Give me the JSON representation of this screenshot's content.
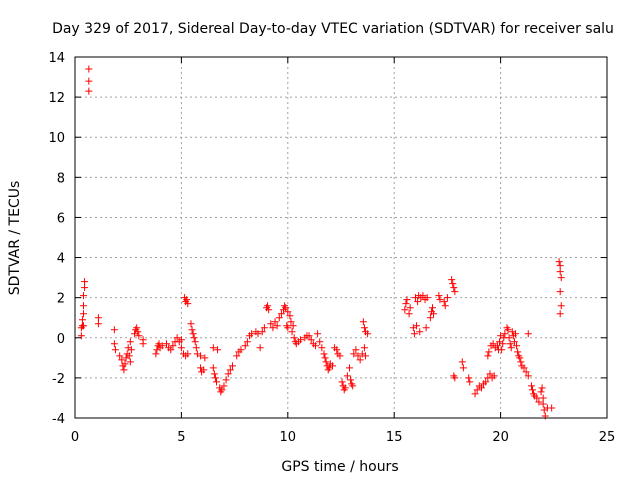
{
  "chart_data": {
    "type": "scatter",
    "title": "Day 329 of 2017, Sidereal Day-to-day VTEC variation (SDTVAR) for receiver salu",
    "xlabel": "GPS time / hours",
    "ylabel": "SDTVAR / TECUs",
    "xlim": [
      0,
      25
    ],
    "ylim": [
      -4,
      14
    ],
    "xticks": [
      0,
      5,
      10,
      15,
      20,
      25
    ],
    "yticks": [
      -4,
      -2,
      0,
      2,
      4,
      6,
      8,
      10,
      12,
      14
    ],
    "grid": true,
    "marker": "+",
    "color": "#ff0000",
    "series": [
      {
        "name": "SDTVAR",
        "points": [
          [
            0.3,
            0.1
          ],
          [
            0.3,
            0.5
          ],
          [
            0.35,
            0.6
          ],
          [
            0.35,
            0.9
          ],
          [
            0.4,
            1.2
          ],
          [
            0.4,
            1.6
          ],
          [
            0.4,
            2.1
          ],
          [
            0.45,
            2.5
          ],
          [
            0.45,
            2.8
          ],
          [
            0.4,
            0.6
          ],
          [
            0.65,
            13.4
          ],
          [
            0.65,
            12.8
          ],
          [
            0.65,
            12.3
          ],
          [
            1.1,
            1.0
          ],
          [
            1.1,
            0.7
          ],
          [
            1.85,
            0.4
          ],
          [
            1.85,
            -0.3
          ],
          [
            1.9,
            -0.6
          ],
          [
            2.1,
            -0.9
          ],
          [
            2.2,
            -1.1
          ],
          [
            2.25,
            -1.4
          ],
          [
            2.3,
            -1.6
          ],
          [
            2.35,
            -1.3
          ],
          [
            2.4,
            -1.0
          ],
          [
            2.45,
            -0.8
          ],
          [
            2.5,
            -0.5
          ],
          [
            2.55,
            -0.9
          ],
          [
            2.6,
            -1.2
          ],
          [
            2.6,
            -0.2
          ],
          [
            2.65,
            -0.6
          ],
          [
            2.8,
            0.2
          ],
          [
            2.85,
            0.4
          ],
          [
            2.9,
            0.5
          ],
          [
            2.95,
            0.3
          ],
          [
            3.0,
            0.1
          ],
          [
            3.2,
            -0.1
          ],
          [
            3.2,
            -0.3
          ],
          [
            3.8,
            -0.8
          ],
          [
            3.85,
            -0.6
          ],
          [
            3.9,
            -0.4
          ],
          [
            3.95,
            -0.3
          ],
          [
            4.0,
            -0.5
          ],
          [
            4.1,
            -0.4
          ],
          [
            4.3,
            -0.3
          ],
          [
            4.4,
            -0.5
          ],
          [
            4.5,
            -0.6
          ],
          [
            4.6,
            -0.4
          ],
          [
            4.7,
            -0.2
          ],
          [
            4.8,
            0.0
          ],
          [
            4.9,
            -0.2
          ],
          [
            5.0,
            -0.1
          ],
          [
            5.0,
            -0.5
          ],
          [
            5.1,
            -0.8
          ],
          [
            5.15,
            2.0
          ],
          [
            5.2,
            1.8
          ],
          [
            5.2,
            -0.9
          ],
          [
            5.25,
            1.9
          ],
          [
            5.3,
            1.7
          ],
          [
            5.3,
            -0.8
          ],
          [
            5.45,
            0.7
          ],
          [
            5.5,
            0.4
          ],
          [
            5.55,
            0.2
          ],
          [
            5.6,
            0.0
          ],
          [
            5.65,
            -0.2
          ],
          [
            5.7,
            -0.5
          ],
          [
            5.75,
            -0.8
          ],
          [
            5.9,
            -0.9
          ],
          [
            5.9,
            -1.5
          ],
          [
            5.95,
            -1.7
          ],
          [
            6.05,
            -1.6
          ],
          [
            6.1,
            -1.0
          ],
          [
            6.5,
            -0.5
          ],
          [
            6.5,
            -1.5
          ],
          [
            6.55,
            -1.8
          ],
          [
            6.6,
            -2.0
          ],
          [
            6.65,
            -2.2
          ],
          [
            6.7,
            -0.6
          ],
          [
            6.8,
            -2.5
          ],
          [
            6.85,
            -2.7
          ],
          [
            6.9,
            -2.6
          ],
          [
            7.0,
            -2.4
          ],
          [
            7.1,
            -2.1
          ],
          [
            7.2,
            -1.8
          ],
          [
            7.3,
            -1.6
          ],
          [
            7.4,
            -1.4
          ],
          [
            7.6,
            -0.9
          ],
          [
            7.7,
            -0.7
          ],
          [
            7.8,
            -0.6
          ],
          [
            8.0,
            -0.4
          ],
          [
            8.1,
            -0.2
          ],
          [
            8.2,
            0.1
          ],
          [
            8.3,
            0.2
          ],
          [
            8.5,
            0.3
          ],
          [
            8.6,
            0.2
          ],
          [
            8.7,
            -0.5
          ],
          [
            8.8,
            0.3
          ],
          [
            8.9,
            0.5
          ],
          [
            9.0,
            1.5
          ],
          [
            9.05,
            1.6
          ],
          [
            9.1,
            1.4
          ],
          [
            9.2,
            0.7
          ],
          [
            9.3,
            0.5
          ],
          [
            9.4,
            0.8
          ],
          [
            9.5,
            0.6
          ],
          [
            9.6,
            1.0
          ],
          [
            9.7,
            1.2
          ],
          [
            9.8,
            1.4
          ],
          [
            9.85,
            1.6
          ],
          [
            9.9,
            1.5
          ],
          [
            9.95,
            0.6
          ],
          [
            10.0,
            1.3
          ],
          [
            10.0,
            0.5
          ],
          [
            10.1,
            1.1
          ],
          [
            10.15,
            0.8
          ],
          [
            10.2,
            0.3
          ],
          [
            10.25,
            0.6
          ],
          [
            10.3,
            0.0
          ],
          [
            10.35,
            -0.2
          ],
          [
            10.4,
            -0.3
          ],
          [
            10.5,
            -0.2
          ],
          [
            10.6,
            -0.1
          ],
          [
            10.8,
            0.0
          ],
          [
            10.9,
            0.1
          ],
          [
            11.0,
            0.1
          ],
          [
            11.1,
            -0.1
          ],
          [
            11.2,
            -0.3
          ],
          [
            11.3,
            -0.4
          ],
          [
            11.4,
            0.2
          ],
          [
            11.5,
            -0.2
          ],
          [
            11.6,
            -0.5
          ],
          [
            11.7,
            -0.8
          ],
          [
            11.75,
            -1.0
          ],
          [
            11.8,
            -1.2
          ],
          [
            11.85,
            -1.4
          ],
          [
            11.9,
            -1.6
          ],
          [
            11.95,
            -1.5
          ],
          [
            12.0,
            -1.3
          ],
          [
            12.1,
            -1.4
          ],
          [
            12.2,
            -0.5
          ],
          [
            12.3,
            -0.6
          ],
          [
            12.35,
            -0.8
          ],
          [
            12.45,
            -0.9
          ],
          [
            12.55,
            -2.2
          ],
          [
            12.6,
            -2.4
          ],
          [
            12.65,
            -2.6
          ],
          [
            12.7,
            -2.5
          ],
          [
            12.8,
            -1.9
          ],
          [
            12.9,
            -1.5
          ],
          [
            12.95,
            -2.1
          ],
          [
            13.0,
            -2.3
          ],
          [
            13.05,
            -2.4
          ],
          [
            13.1,
            -0.8
          ],
          [
            13.2,
            -0.6
          ],
          [
            13.3,
            -0.9
          ],
          [
            13.4,
            -1.1
          ],
          [
            13.5,
            -0.8
          ],
          [
            13.6,
            -0.5
          ],
          [
            13.65,
            -0.9
          ],
          [
            13.55,
            0.8
          ],
          [
            13.6,
            0.5
          ],
          [
            13.65,
            0.3
          ],
          [
            13.75,
            0.2
          ],
          [
            15.5,
            1.4
          ],
          [
            15.55,
            1.7
          ],
          [
            15.6,
            1.9
          ],
          [
            15.7,
            1.2
          ],
          [
            15.75,
            1.5
          ],
          [
            15.9,
            0.5
          ],
          [
            15.95,
            0.2
          ],
          [
            16.0,
            2.0
          ],
          [
            16.05,
            0.6
          ],
          [
            16.1,
            1.8
          ],
          [
            16.15,
            2.1
          ],
          [
            16.2,
            0.3
          ],
          [
            16.25,
            2.0
          ],
          [
            16.35,
            2.1
          ],
          [
            16.45,
            1.9
          ],
          [
            16.5,
            0.5
          ],
          [
            16.55,
            2.0
          ],
          [
            16.7,
            1.0
          ],
          [
            16.75,
            1.3
          ],
          [
            16.8,
            1.5
          ],
          [
            16.85,
            1.2
          ],
          [
            17.1,
            2.1
          ],
          [
            17.15,
            1.9
          ],
          [
            17.35,
            1.8
          ],
          [
            17.4,
            1.6
          ],
          [
            17.5,
            2.0
          ],
          [
            17.7,
            2.9
          ],
          [
            17.75,
            2.7
          ],
          [
            17.8,
            2.5
          ],
          [
            17.85,
            2.3
          ],
          [
            17.8,
            -1.9
          ],
          [
            17.85,
            -2.0
          ],
          [
            18.2,
            -1.2
          ],
          [
            18.25,
            -1.5
          ],
          [
            18.5,
            -2.0
          ],
          [
            18.55,
            -2.2
          ],
          [
            18.8,
            -2.8
          ],
          [
            18.9,
            -2.6
          ],
          [
            19.0,
            -2.4
          ],
          [
            19.1,
            -2.5
          ],
          [
            19.2,
            -2.3
          ],
          [
            19.3,
            -2.2
          ],
          [
            19.4,
            -2.0
          ],
          [
            19.5,
            -1.8
          ],
          [
            19.6,
            -2.0
          ],
          [
            19.7,
            -1.9
          ],
          [
            19.4,
            -0.9
          ],
          [
            19.45,
            -0.7
          ],
          [
            19.55,
            -0.4
          ],
          [
            19.65,
            -0.3
          ],
          [
            19.75,
            -0.5
          ],
          [
            19.85,
            -0.4
          ],
          [
            19.9,
            -0.6
          ],
          [
            19.95,
            -0.2
          ],
          [
            20.0,
            0.1
          ],
          [
            20.05,
            -0.6
          ],
          [
            20.1,
            -0.3
          ],
          [
            20.15,
            0.0
          ],
          [
            20.2,
            0.2
          ],
          [
            20.3,
            0.5
          ],
          [
            20.35,
            0.4
          ],
          [
            20.4,
            0.0
          ],
          [
            20.45,
            -0.3
          ],
          [
            20.5,
            -0.5
          ],
          [
            20.55,
            0.3
          ],
          [
            20.6,
            0.1
          ],
          [
            20.65,
            -0.2
          ],
          [
            20.7,
            0.2
          ],
          [
            20.75,
            -0.4
          ],
          [
            20.8,
            -0.7
          ],
          [
            20.85,
            -0.9
          ],
          [
            20.9,
            -1.0
          ],
          [
            20.95,
            -1.2
          ],
          [
            21.0,
            -1.4
          ],
          [
            21.1,
            -1.5
          ],
          [
            21.2,
            -1.7
          ],
          [
            21.3,
            0.2
          ],
          [
            21.3,
            -1.9
          ],
          [
            21.45,
            -2.4
          ],
          [
            21.5,
            -2.6
          ],
          [
            21.55,
            -2.8
          ],
          [
            21.6,
            -2.9
          ],
          [
            21.7,
            -3.0
          ],
          [
            21.8,
            -3.2
          ],
          [
            21.9,
            -2.7
          ],
          [
            21.95,
            -2.5
          ],
          [
            22.0,
            -3.0
          ],
          [
            22.0,
            -3.3
          ],
          [
            22.05,
            -3.6
          ],
          [
            22.1,
            -3.9
          ],
          [
            22.2,
            -3.5
          ],
          [
            22.4,
            -3.5
          ],
          [
            22.75,
            3.8
          ],
          [
            22.8,
            3.6
          ],
          [
            22.8,
            3.3
          ],
          [
            22.85,
            3.0
          ],
          [
            22.8,
            2.3
          ],
          [
            22.85,
            1.6
          ],
          [
            22.8,
            1.2
          ]
        ]
      }
    ]
  }
}
